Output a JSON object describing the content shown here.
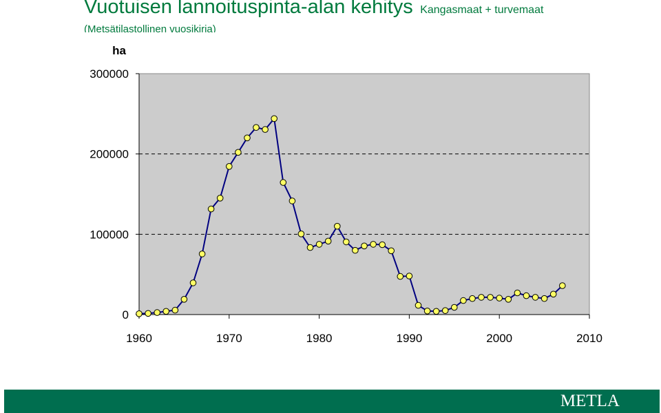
{
  "header": {
    "title": "Vuotuisen lannoituspinta-alan kehitys",
    "subtitle": "Kangasmaat + turvemaat",
    "source": "(Metsätilastollinen vuosikirja)"
  },
  "footer": {
    "brand": "METLA",
    "color": "#006e4f"
  },
  "chart_data": {
    "type": "line",
    "title": "Vuotuisen lannoituspinta-alan kehitys",
    "subtitle": "Kangasmaat + turvemaat",
    "ylabel": "ha",
    "xlabel": "",
    "xlim": [
      1960,
      2010
    ],
    "ylim": [
      0,
      300000
    ],
    "x_ticks": [
      1960,
      1970,
      1980,
      1990,
      2000,
      2010
    ],
    "y_ticks": [
      0,
      100000,
      200000,
      300000
    ],
    "y_tick_labels": [
      "0",
      "100000",
      "200000",
      "300000"
    ],
    "grid": "horizontal dashed at 100000 and 200000",
    "legend": "none",
    "colors": {
      "line": "#000080",
      "marker_fill": "#ffff66",
      "plot_background": "#cccccc"
    },
    "series": [
      {
        "x": [
          1960,
          1961,
          1962,
          1963,
          1964,
          1965,
          1966,
          1967,
          1968,
          1969,
          1970,
          1971,
          1972,
          1973,
          1974,
          1975,
          1976,
          1977,
          1978,
          1979,
          1980,
          1981,
          1982,
          1983,
          1984,
          1985,
          1986,
          1987,
          1988,
          1989,
          1990,
          1991,
          1992,
          1993,
          1994,
          1995,
          1996,
          1997,
          1998,
          1999,
          2000,
          2001,
          2002,
          2003,
          2004,
          2005,
          2006,
          2007
        ],
        "y": [
          1000,
          1500,
          2500,
          4000,
          5500,
          19000,
          39500,
          75500,
          131500,
          145000,
          184500,
          202000,
          220000,
          233000,
          230500,
          244000,
          164500,
          141500,
          100500,
          83500,
          87500,
          91500,
          110000,
          90500,
          80000,
          85500,
          87500,
          87000,
          79500,
          47500,
          48000,
          11500,
          4500,
          4000,
          5000,
          9000,
          17500,
          20000,
          21500,
          21500,
          20500,
          19000,
          27000,
          23500,
          21500,
          20000,
          25500,
          36000
        ]
      }
    ]
  }
}
